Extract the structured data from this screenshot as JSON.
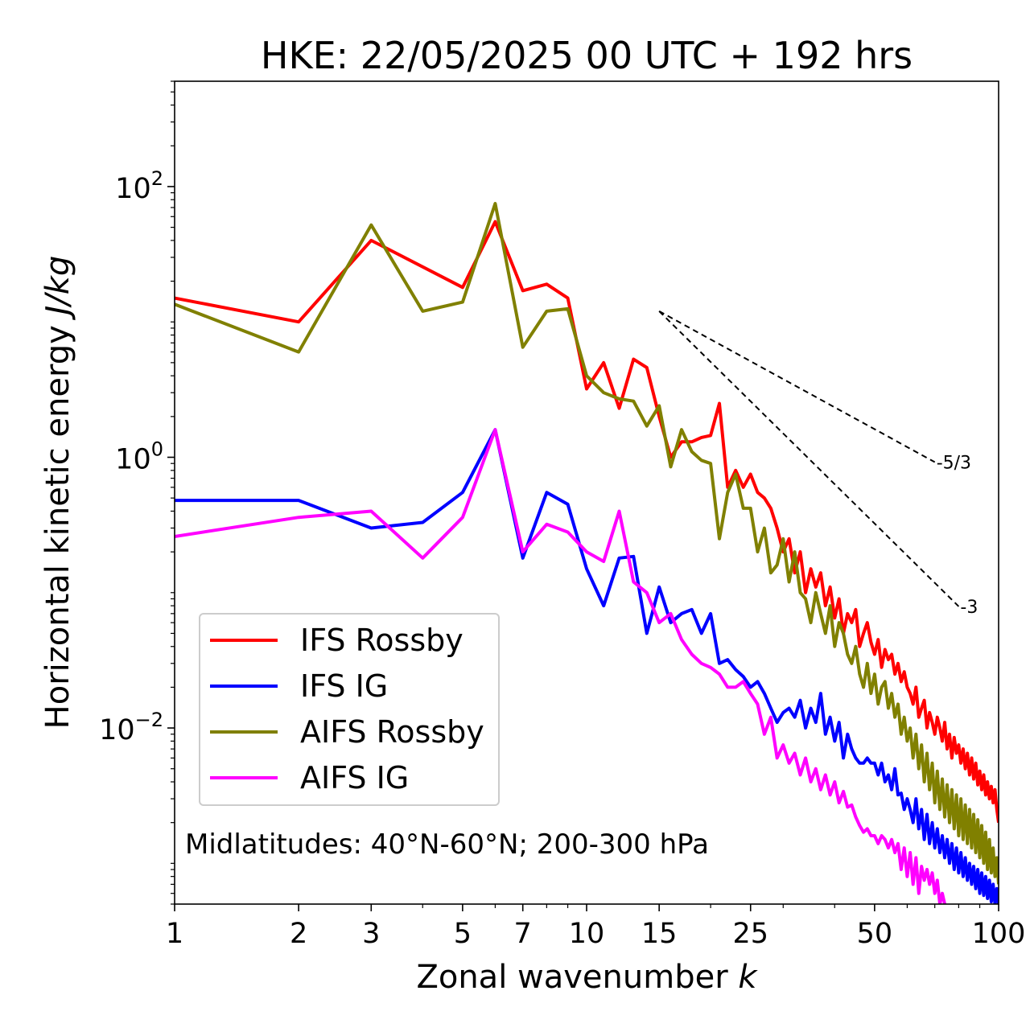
{
  "chart_data": {
    "type": "line",
    "title": "HKE: 22/05/2025 00 UTC + 192 hrs",
    "xlabel": "Zonal wavenumber",
    "xlabel_var": "k",
    "ylabel": "Horizontal kinetic energy",
    "ylabel_unit": "J/kg",
    "xscale": "log",
    "yscale": "log",
    "xlim": [
      1,
      100
    ],
    "ylim": [
      0.0005,
      600
    ],
    "xticks": [
      1,
      2,
      3,
      5,
      7,
      10,
      15,
      25,
      50,
      100
    ],
    "xtick_labels": [
      "1",
      "2",
      "3",
      "5",
      "7",
      "10",
      "15",
      "25",
      "50",
      "100"
    ],
    "yticks": [
      {
        "value": 100,
        "base": "10",
        "exp": "2"
      },
      {
        "value": 1,
        "base": "10",
        "exp": "0"
      },
      {
        "value": 0.01,
        "base": "10",
        "exp": "−2"
      }
    ],
    "grid": false,
    "legend_position": "lower-left",
    "annotation": "Midlatitudes: 40°N-60°N; 200-300 hPa",
    "reference_slopes": [
      {
        "label": "-5/3",
        "slope": -1.6667,
        "x0": 15,
        "y0": 12,
        "x1": 70
      },
      {
        "label": "-3",
        "slope": -3,
        "x0": 15,
        "y0": 12,
        "x1": 80
      }
    ],
    "series": [
      {
        "name": "IFS Rossby",
        "color": "#ff0000",
        "x": [
          1,
          2,
          3,
          5,
          6,
          7,
          8,
          9,
          10,
          11,
          12,
          13,
          14,
          15,
          16,
          17,
          18,
          19,
          20,
          21,
          22,
          23,
          24,
          25,
          26,
          27,
          28,
          29,
          30,
          31,
          32,
          33,
          34,
          35,
          36,
          37,
          38,
          39,
          40,
          41,
          42,
          43,
          44,
          45,
          46,
          47,
          48,
          49,
          50,
          51,
          52,
          53,
          54,
          55,
          56,
          57,
          58,
          59,
          60,
          61,
          62,
          63,
          64,
          65,
          66,
          67,
          68,
          69,
          70,
          71,
          72,
          73,
          74,
          75,
          76,
          77,
          78,
          79,
          80,
          81,
          82,
          83,
          84,
          85,
          86,
          87,
          88,
          89,
          90,
          91,
          92,
          93,
          94,
          95,
          96,
          97,
          98,
          99,
          100
        ],
        "y": [
          15,
          10,
          40,
          18,
          55,
          17,
          19,
          15,
          3.2,
          5,
          2.3,
          5.3,
          4.6,
          2,
          1,
          1.3,
          1.3,
          1.4,
          1.45,
          2.5,
          0.6,
          0.8,
          0.6,
          0.75,
          0.55,
          0.5,
          0.42,
          0.3,
          0.2,
          0.25,
          0.14,
          0.2,
          0.1,
          0.15,
          0.11,
          0.14,
          0.08,
          0.11,
          0.065,
          0.09,
          0.05,
          0.07,
          0.06,
          0.075,
          0.04,
          0.05,
          0.06,
          0.043,
          0.035,
          0.045,
          0.028,
          0.038,
          0.032,
          0.035,
          0.025,
          0.03,
          0.022,
          0.026,
          0.02,
          0.018,
          0.015,
          0.02,
          0.012,
          0.014,
          0.016,
          0.01,
          0.013,
          0.011,
          0.009,
          0.012,
          0.01,
          0.008,
          0.011,
          0.007,
          0.009,
          0.006,
          0.0085,
          0.0065,
          0.0075,
          0.0055,
          0.007,
          0.005,
          0.0065,
          0.0045,
          0.006,
          0.0042,
          0.0055,
          0.0038,
          0.0048,
          0.0035,
          0.0045,
          0.0032,
          0.004,
          0.003,
          0.0037,
          0.0028,
          0.0035,
          0.0025,
          0.002
        ]
      },
      {
        "name": "IFS IG",
        "color": "#0000ff",
        "x": [
          1,
          2,
          3,
          4,
          5,
          6,
          7,
          8,
          9,
          10,
          11,
          12,
          13,
          14,
          15,
          16,
          17,
          18,
          19,
          20,
          21,
          22,
          23,
          24,
          25,
          26,
          27,
          28,
          29,
          30,
          31,
          32,
          33,
          34,
          35,
          36,
          37,
          38,
          39,
          40,
          41,
          42,
          43,
          44,
          45,
          46,
          47,
          48,
          49,
          50,
          51,
          52,
          53,
          54,
          55,
          56,
          57,
          58,
          59,
          60,
          61,
          62,
          63,
          64,
          65,
          66,
          67,
          68,
          69,
          70,
          71,
          72,
          73,
          74,
          75,
          76,
          77,
          78,
          79,
          80,
          81,
          82,
          83,
          84,
          85,
          86,
          87,
          88,
          89,
          90,
          91,
          92,
          93,
          94,
          95,
          96,
          97,
          98,
          99,
          100
        ],
        "y": [
          0.48,
          0.48,
          0.3,
          0.33,
          0.55,
          1.6,
          0.18,
          0.55,
          0.45,
          0.15,
          0.08,
          0.18,
          0.185,
          0.05,
          0.11,
          0.06,
          0.07,
          0.075,
          0.05,
          0.07,
          0.03,
          0.032,
          0.027,
          0.024,
          0.02,
          0.022,
          0.018,
          0.014,
          0.011,
          0.013,
          0.014,
          0.012,
          0.016,
          0.01,
          0.014,
          0.011,
          0.018,
          0.009,
          0.012,
          0.008,
          0.011,
          0.006,
          0.009,
          0.007,
          0.006,
          0.0055,
          0.0055,
          0.006,
          0.0055,
          0.0055,
          0.0045,
          0.0055,
          0.004,
          0.0045,
          0.0035,
          0.005,
          0.0032,
          0.0033,
          0.0025,
          0.003,
          0.0025,
          0.002,
          0.003,
          0.0018,
          0.0025,
          0.0015,
          0.0023,
          0.0014,
          0.002,
          0.0013,
          0.0018,
          0.0012,
          0.0016,
          0.0011,
          0.0015,
          0.001,
          0.0014,
          0.0009,
          0.0013,
          0.00085,
          0.0012,
          0.0008,
          0.0011,
          0.00075,
          0.001,
          0.0007,
          0.00095,
          0.00065,
          0.0009,
          0.0006,
          0.00085,
          0.00058,
          0.0008,
          0.00055,
          0.00075,
          0.00052,
          0.0007,
          0.0005,
          0.00065,
          0.0005
        ]
      },
      {
        "name": "AIFS Rossby",
        "color": "#808000",
        "x": [
          1,
          2,
          3,
          4,
          5,
          6,
          7,
          8,
          9,
          10,
          11,
          12,
          13,
          14,
          15,
          16,
          17,
          18,
          19,
          20,
          21,
          22,
          23,
          24,
          25,
          26,
          27,
          28,
          29,
          30,
          31,
          32,
          33,
          34,
          35,
          36,
          37,
          38,
          39,
          40,
          41,
          42,
          43,
          44,
          45,
          46,
          47,
          48,
          49,
          50,
          51,
          52,
          53,
          54,
          55,
          56,
          57,
          58,
          59,
          60,
          61,
          62,
          63,
          64,
          65,
          66,
          67,
          68,
          69,
          70,
          71,
          72,
          73,
          74,
          75,
          76,
          77,
          78,
          79,
          80,
          81,
          82,
          83,
          84,
          85,
          86,
          87,
          88,
          89,
          90,
          91,
          92,
          93,
          94,
          95,
          96,
          97,
          98,
          99,
          100
        ],
        "y": [
          13.5,
          6,
          52,
          12,
          14,
          75,
          6.5,
          12,
          12.5,
          4,
          3,
          2.7,
          2.6,
          1.7,
          2.4,
          0.85,
          1.6,
          1.1,
          0.95,
          0.9,
          0.25,
          0.55,
          0.75,
          0.42,
          0.42,
          0.2,
          0.3,
          0.14,
          0.16,
          0.25,
          0.12,
          0.2,
          0.1,
          0.09,
          0.06,
          0.1,
          0.07,
          0.05,
          0.08,
          0.04,
          0.06,
          0.05,
          0.035,
          0.03,
          0.04,
          0.025,
          0.02,
          0.03,
          0.018,
          0.025,
          0.015,
          0.02,
          0.022,
          0.014,
          0.018,
          0.012,
          0.015,
          0.009,
          0.012,
          0.008,
          0.01,
          0.006,
          0.009,
          0.005,
          0.0075,
          0.004,
          0.0065,
          0.0035,
          0.0055,
          0.0028,
          0.0048,
          0.0025,
          0.0042,
          0.0022,
          0.0038,
          0.002,
          0.0035,
          0.0018,
          0.0032,
          0.0016,
          0.003,
          0.0015,
          0.0027,
          0.0014,
          0.0025,
          0.0013,
          0.0023,
          0.0012,
          0.0021,
          0.0011,
          0.0019,
          0.001,
          0.0017,
          0.0009,
          0.0015,
          0.00085,
          0.0013,
          0.0008,
          0.0011,
          0.0007
        ]
      },
      {
        "name": "AIFS IG",
        "color": "#ff00ff",
        "x": [
          1,
          2,
          3,
          4,
          5,
          6,
          7,
          8,
          9,
          10,
          11,
          12,
          13,
          14,
          15,
          16,
          17,
          18,
          19,
          20,
          21,
          22,
          23,
          24,
          25,
          26,
          27,
          28,
          29,
          30,
          31,
          32,
          33,
          34,
          35,
          36,
          37,
          38,
          39,
          40,
          41,
          42,
          43,
          44,
          45,
          46,
          47,
          48,
          49,
          50,
          51,
          52,
          53,
          54,
          55,
          56,
          57,
          58,
          59,
          60,
          61,
          62,
          63,
          64,
          65,
          66,
          67,
          68,
          69,
          70,
          71,
          72,
          73,
          74
        ],
        "y": [
          0.26,
          0.36,
          0.4,
          0.18,
          0.36,
          1.6,
          0.2,
          0.32,
          0.28,
          0.2,
          0.17,
          0.4,
          0.12,
          0.1,
          0.06,
          0.07,
          0.045,
          0.035,
          0.03,
          0.028,
          0.025,
          0.02,
          0.02,
          0.022,
          0.018,
          0.015,
          0.009,
          0.012,
          0.006,
          0.0075,
          0.0055,
          0.0065,
          0.0045,
          0.006,
          0.004,
          0.005,
          0.0035,
          0.0045,
          0.0032,
          0.004,
          0.0028,
          0.0034,
          0.0026,
          0.0027,
          0.0022,
          0.0019,
          0.0017,
          0.0018,
          0.0016,
          0.0016,
          0.0014,
          0.0016,
          0.0015,
          0.0013,
          0.0015,
          0.0012,
          0.0014,
          0.0009,
          0.0013,
          0.0008,
          0.0012,
          0.0007,
          0.0011,
          0.0006,
          0.00095,
          0.00075,
          0.0009,
          0.0007,
          0.00085,
          0.0006,
          0.00075,
          0.0005,
          0.0006,
          0.0005
        ]
      }
    ]
  }
}
